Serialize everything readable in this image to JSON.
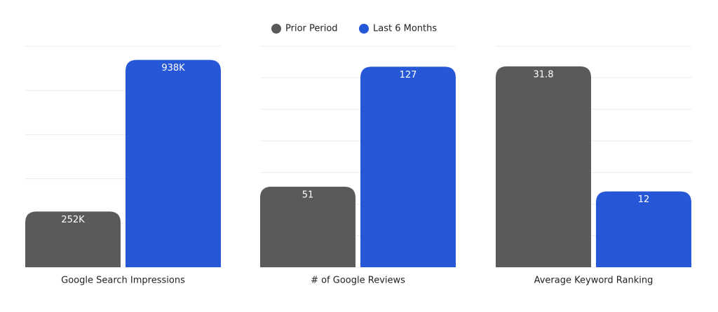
{
  "legend": [
    {
      "name": "Prior Period",
      "color": "#5a5a5a"
    },
    {
      "name": "Last 6 Months",
      "color": "#2557d6"
    }
  ],
  "chart_data": [
    {
      "type": "bar",
      "categories": [
        "Google Search Impressions"
      ],
      "series": [
        {
          "values": [
            252000
          ],
          "value_labels": [
            "252K"
          ]
        },
        {
          "values": [
            938000
          ],
          "value_labels": [
            "938K"
          ]
        }
      ],
      "ylim": [
        0,
        1000000
      ],
      "yticks": [
        0,
        200000,
        400000,
        600000,
        800000,
        1000000
      ],
      "grid": true
    },
    {
      "type": "bar",
      "categories": [
        "# of Google Reviews"
      ],
      "series": [
        {
          "values": [
            51
          ]
        },
        {
          "values": [
            127
          ]
        }
      ],
      "ylim": [
        0,
        140
      ],
      "yticks": [
        0,
        20,
        40,
        60,
        80,
        100,
        120,
        140
      ],
      "grid": true
    },
    {
      "type": "bar",
      "categories": [
        "Average Keyword Ranking"
      ],
      "series": [
        {
          "values": [
            31.8
          ]
        },
        {
          "values": [
            12
          ]
        }
      ],
      "ylim": [
        0,
        35
      ],
      "yticks": [
        0,
        5,
        10,
        15,
        20,
        25,
        30,
        35
      ],
      "grid": true
    }
  ]
}
